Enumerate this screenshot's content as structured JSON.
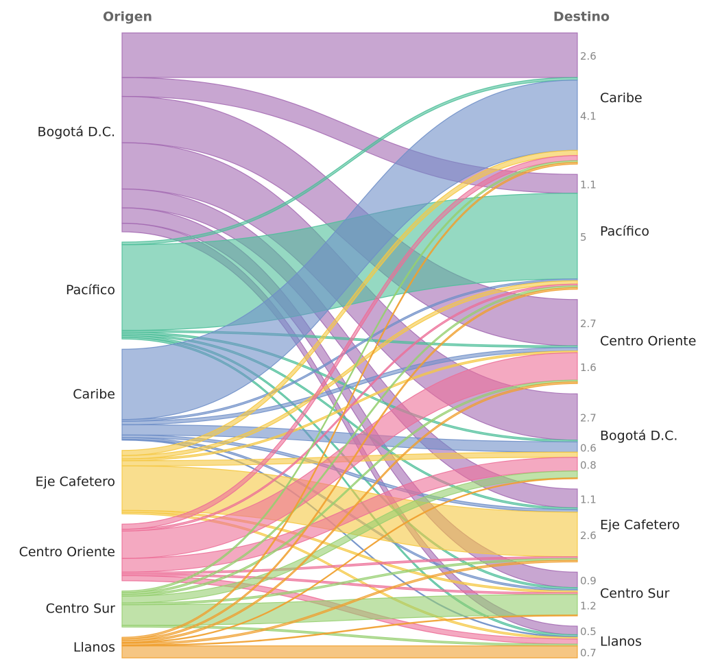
{
  "chart_data": {
    "type": "sankey",
    "left_title": "Origen",
    "right_title": "Destino",
    "sources": [
      "Bogotá D.C.",
      "Pacífico",
      "Caribe",
      "Eje Cafetero",
      "Centro Oriente",
      "Centro Sur",
      "Llanos"
    ],
    "source_colors": [
      "#a46bb3",
      "#4fbf9a",
      "#6f8fc8",
      "#f5c842",
      "#ec6f98",
      "#96cf70",
      "#f0a030"
    ],
    "targets": [
      "Caribe",
      "Pacífico",
      "Centro Oriente",
      "Bogotá D.C.",
      "Eje Cafetero",
      "Centro Sur",
      "Llanos"
    ],
    "flows": [
      {
        "from": 0,
        "to": 0,
        "value": 2.6,
        "labeled": true
      },
      {
        "from": 0,
        "to": 1,
        "value": 1.1,
        "labeled": true
      },
      {
        "from": 0,
        "to": 2,
        "value": 2.7,
        "labeled": true
      },
      {
        "from": 0,
        "to": 3,
        "value": 2.7,
        "labeled": true
      },
      {
        "from": 0,
        "to": 4,
        "value": 1.1,
        "labeled": true
      },
      {
        "from": 0,
        "to": 5,
        "value": 0.9,
        "labeled": true
      },
      {
        "from": 0,
        "to": 6,
        "value": 0.5,
        "labeled": true
      },
      {
        "from": 1,
        "to": 0,
        "value": 0.15,
        "labeled": false
      },
      {
        "from": 1,
        "to": 1,
        "value": 5.0,
        "labeled": true
      },
      {
        "from": 1,
        "to": 2,
        "value": 0.1,
        "labeled": false
      },
      {
        "from": 1,
        "to": 3,
        "value": 0.1,
        "labeled": false
      },
      {
        "from": 1,
        "to": 4,
        "value": 0.1,
        "labeled": false
      },
      {
        "from": 1,
        "to": 5,
        "value": 0.1,
        "labeled": false
      },
      {
        "from": 1,
        "to": 6,
        "value": 0.1,
        "labeled": false
      },
      {
        "from": 2,
        "to": 0,
        "value": 4.1,
        "labeled": true
      },
      {
        "from": 2,
        "to": 1,
        "value": 0.1,
        "labeled": false
      },
      {
        "from": 2,
        "to": 2,
        "value": 0.2,
        "labeled": false
      },
      {
        "from": 2,
        "to": 3,
        "value": 0.6,
        "labeled": true
      },
      {
        "from": 2,
        "to": 4,
        "value": 0.15,
        "labeled": false
      },
      {
        "from": 2,
        "to": 5,
        "value": 0.1,
        "labeled": false
      },
      {
        "from": 2,
        "to": 6,
        "value": 0.05,
        "labeled": false
      },
      {
        "from": 3,
        "to": 0,
        "value": 0.3,
        "labeled": false
      },
      {
        "from": 3,
        "to": 1,
        "value": 0.2,
        "labeled": false
      },
      {
        "from": 3,
        "to": 2,
        "value": 0.1,
        "labeled": false
      },
      {
        "from": 3,
        "to": 3,
        "value": 0.3,
        "labeled": false
      },
      {
        "from": 3,
        "to": 4,
        "value": 2.6,
        "labeled": true
      },
      {
        "from": 3,
        "to": 5,
        "value": 0.1,
        "labeled": false
      },
      {
        "from": 3,
        "to": 6,
        "value": 0.1,
        "labeled": false
      },
      {
        "from": 4,
        "to": 0,
        "value": 0.3,
        "labeled": false
      },
      {
        "from": 4,
        "to": 1,
        "value": 0.1,
        "labeled": false
      },
      {
        "from": 4,
        "to": 2,
        "value": 1.6,
        "labeled": true
      },
      {
        "from": 4,
        "to": 3,
        "value": 0.8,
        "labeled": true
      },
      {
        "from": 4,
        "to": 4,
        "value": 0.1,
        "labeled": false
      },
      {
        "from": 4,
        "to": 5,
        "value": 0.1,
        "labeled": false
      },
      {
        "from": 4,
        "to": 6,
        "value": 0.3,
        "labeled": false
      },
      {
        "from": 5,
        "to": 0,
        "value": 0.1,
        "labeled": false
      },
      {
        "from": 5,
        "to": 1,
        "value": 0.1,
        "labeled": false
      },
      {
        "from": 5,
        "to": 2,
        "value": 0.1,
        "labeled": false
      },
      {
        "from": 5,
        "to": 3,
        "value": 0.4,
        "labeled": false
      },
      {
        "from": 5,
        "to": 4,
        "value": 0.1,
        "labeled": false
      },
      {
        "from": 5,
        "to": 5,
        "value": 1.2,
        "labeled": true
      },
      {
        "from": 5,
        "to": 6,
        "value": 0.1,
        "labeled": false
      },
      {
        "from": 6,
        "to": 0,
        "value": 0.1,
        "labeled": false
      },
      {
        "from": 6,
        "to": 1,
        "value": 0.1,
        "labeled": false
      },
      {
        "from": 6,
        "to": 2,
        "value": 0.1,
        "labeled": false
      },
      {
        "from": 6,
        "to": 3,
        "value": 0.05,
        "labeled": false
      },
      {
        "from": 6,
        "to": 4,
        "value": 0.1,
        "labeled": false
      },
      {
        "from": 6,
        "to": 5,
        "value": 0.05,
        "labeled": false
      },
      {
        "from": 6,
        "to": 6,
        "value": 0.7,
        "labeled": true
      }
    ]
  }
}
